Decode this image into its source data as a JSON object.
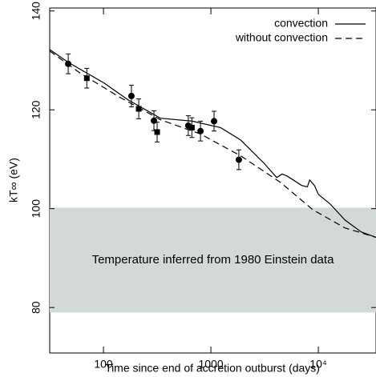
{
  "chart_data": {
    "type": "line",
    "x_label": "Time since end of accretion outburst (days)",
    "y_label": "kT∞ (eV)",
    "xlog": true,
    "xlim": [
      31.6,
      34400
    ],
    "ylim": [
      70.8,
      140.6
    ],
    "xticks": [
      100,
      1000,
      {
        "value": 10000,
        "label": "10⁴"
      }
    ],
    "yticks": [
      80,
      100,
      120,
      140
    ],
    "band": {
      "range": [
        79,
        100.2
      ],
      "color": "#d3d9d7",
      "label": "Temperature inferred from 1980 Einstein data"
    },
    "legend": "upper right",
    "series": [
      {
        "name": "convection",
        "style": "solid",
        "color": "#000000",
        "x": [
          31.6,
          47,
          101.7,
          170,
          339,
          673,
          1230,
          1890,
          3150,
          4090,
          4600,
          5120,
          6990,
          7900,
          8300,
          9190,
          10000,
          12800,
          17700,
          25000,
          34400
        ],
        "values": [
          132.2,
          129.6,
          125.4,
          122,
          118.3,
          117.7,
          116.4,
          113.9,
          109.1,
          106.3,
          107,
          106.6,
          104.7,
          104.4,
          105.8,
          104.7,
          102.9,
          101,
          97.7,
          95.3,
          94.2
        ]
      },
      {
        "name": "without convection",
        "style": "dashed",
        "color": "#000000",
        "x": [
          31.6,
          61,
          143,
          339,
          800,
          1890,
          4450,
          8860,
          17700,
          34400
        ],
        "values": [
          131.9,
          127.4,
          122.5,
          118,
          115.1,
          110.7,
          105.3,
          99.8,
          96.1,
          94.2
        ]
      }
    ],
    "points": {
      "circle": {
        "x": [
          47,
          182,
          295,
          616,
          800,
          1070,
          1820
        ],
        "y": [
          129.3,
          122.8,
          117.8,
          116.8,
          115.7,
          117.7,
          109.9
        ],
        "err": [
          2,
          2.2,
          2,
          2,
          2,
          2,
          2
        ]
      },
      "square": {
        "x": [
          70,
          213,
          316,
          665
        ],
        "y": [
          126.4,
          120.2,
          115.5,
          116.4
        ],
        "err": [
          2,
          2,
          2,
          2
        ]
      }
    }
  }
}
